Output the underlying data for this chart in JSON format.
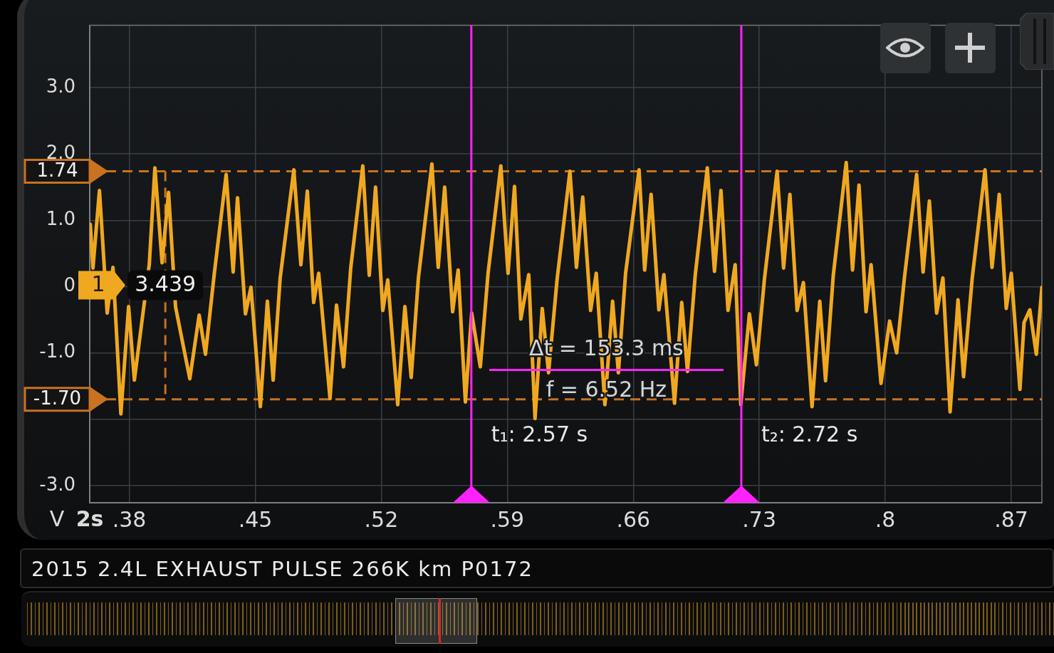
{
  "chart_data": {
    "type": "line",
    "title": "2015 2.4L EXHAUST PULSE 266K km P0172",
    "xlabel": "2s",
    "ylabel": "V",
    "x": [
      0.3583,
      0.3598,
      0.3634,
      0.3677,
      0.3709,
      0.3753,
      0.3796,
      0.3828,
      0.3911,
      0.3942,
      0.3982,
      0.4018,
      0.4057,
      0.4136,
      0.4188,
      0.4223,
      0.4271,
      0.4338,
      0.4377,
      0.4401,
      0.4445,
      0.4476,
      0.4528,
      0.4567,
      0.4599,
      0.4638,
      0.4714,
      0.4753,
      0.4789,
      0.4824,
      0.4852,
      0.4915,
      0.4951,
      0.499,
      0.503,
      0.5097,
      0.5133,
      0.5168,
      0.5208,
      0.5236,
      0.5291,
      0.5331,
      0.5366,
      0.5406,
      0.5481,
      0.5516,
      0.5552,
      0.5596,
      0.5627,
      0.5667,
      0.5702,
      0.575,
      0.5793,
      0.5864,
      0.5904,
      0.594,
      0.5975,
      0.6019,
      0.6054,
      0.6094,
      0.6129,
      0.6177,
      0.6248,
      0.6284,
      0.6319,
      0.6363,
      0.6394,
      0.6442,
      0.6485,
      0.6517,
      0.6557,
      0.6632,
      0.6663,
      0.6699,
      0.6742,
      0.677,
      0.6829,
      0.6869,
      0.6901,
      0.6944,
      0.7011,
      0.7051,
      0.7087,
      0.7126,
      0.7166,
      0.7197,
      0.7245,
      0.7284,
      0.7328,
      0.7399,
      0.7435,
      0.747,
      0.751,
      0.7545,
      0.7593,
      0.7636,
      0.7668,
      0.7711,
      0.7783,
      0.7818,
      0.7854,
      0.7893,
      0.7921,
      0.7976,
      0.8024,
      0.8063,
      0.8107,
      0.8174,
      0.821,
      0.8245,
      0.8285,
      0.832,
      0.836,
      0.8404,
      0.8435,
      0.8483,
      0.8554,
      0.8593,
      0.8633,
      0.8672,
      0.87,
      0.8748,
      0.8771,
      0.8803,
      0.8839,
      0.887
    ],
    "series": [
      {
        "name": "1",
        "color": "#f0a820",
        "values": [
          0.94,
          0.28,
          1.45,
          -0.4,
          0.29,
          -1.92,
          -0.3,
          -1.41,
          0.34,
          1.79,
          0.36,
          1.42,
          -0.31,
          -1.39,
          -0.43,
          -1.02,
          0.17,
          1.69,
          0.22,
          1.34,
          -0.41,
          -0.01,
          -1.81,
          -0.22,
          -1.41,
          0.13,
          1.76,
          0.33,
          1.44,
          -0.24,
          0.2,
          -1.69,
          -0.28,
          -1.21,
          0.28,
          1.82,
          0.17,
          1.5,
          -0.36,
          0.1,
          -1.78,
          -0.3,
          -1.37,
          0.13,
          1.85,
          0.29,
          1.5,
          -0.38,
          0.25,
          -1.74,
          -0.4,
          -1.21,
          0.2,
          1.82,
          0.2,
          1.51,
          -0.49,
          0.18,
          -1.99,
          -0.33,
          -1.3,
          0.12,
          1.74,
          0.29,
          1.35,
          -0.36,
          0.2,
          -1.78,
          -0.22,
          -1.3,
          0.2,
          1.76,
          0.25,
          1.39,
          -0.35,
          0.18,
          -1.76,
          -0.24,
          -1.28,
          0.17,
          1.79,
          0.23,
          1.45,
          -0.36,
          0.33,
          -1.78,
          -0.41,
          -1.18,
          0.1,
          1.74,
          0.28,
          1.39,
          -0.36,
          0.06,
          -1.81,
          -0.22,
          -1.42,
          0.17,
          1.87,
          0.25,
          1.53,
          -0.38,
          0.33,
          -1.46,
          -0.52,
          -1.0,
          0.15,
          1.69,
          0.22,
          1.29,
          -0.4,
          0.13,
          -1.89,
          -0.2,
          -1.36,
          0.13,
          1.76,
          0.29,
          1.39,
          -0.33,
          0.2,
          -1.55,
          -0.54,
          -0.35,
          -1.02,
          -0.01
        ]
      }
    ],
    "xlim": [
      0.358,
      0.887
    ],
    "ylim": [
      -3.26,
      3.94
    ],
    "xticks": [
      {
        "value": 0.38,
        "label": ".38"
      },
      {
        "value": 0.45,
        "label": ".45"
      },
      {
        "value": 0.52,
        "label": ".52"
      },
      {
        "value": 0.59,
        "label": ".59"
      },
      {
        "value": 0.66,
        "label": ".66"
      },
      {
        "value": 0.73,
        "label": ".73"
      },
      {
        "value": 0.8,
        "label": ".8"
      },
      {
        "value": 0.87,
        "label": ".87"
      }
    ],
    "yticks": [
      {
        "value": 3,
        "label": "3.0"
      },
      {
        "value": 2,
        "label": "2.0"
      },
      {
        "value": 1,
        "label": "1.0"
      },
      0,
      {
        "value": -1,
        "label": "-1.0"
      },
      {
        "value": -2,
        "label": null
      },
      {
        "value": -3,
        "label": "-3.0"
      }
    ],
    "ref_lines": [
      {
        "axis": "y",
        "value": 1.74,
        "label": "1.74",
        "color": "#c9721f",
        "line_style": "dashed"
      },
      {
        "axis": "y",
        "value": -1.7,
        "label": "-1.70",
        "color": "#c9721f",
        "line_style": "dashed"
      },
      {
        "axis": "x",
        "value": 0.4,
        "color": "#c9721f",
        "line_style": "dashed"
      },
      {
        "axis": "x",
        "value": 0.57,
        "color": "#ff22ff",
        "line_style": "solid"
      },
      {
        "axis": "x",
        "value": 0.72,
        "color": "#ff22ff",
        "line_style": "solid"
      }
    ],
    "annotations": [
      {
        "text": "3.439",
        "x": 0.4
      },
      {
        "text": "t₁: 2.57 s",
        "x": 0.57
      },
      {
        "text": "t₂: 2.72 s",
        "x": 0.72
      },
      "Δt = 153.3 ms",
      "f = 6.52 Hz"
    ],
    "grid": true,
    "marker": "none"
  }
}
